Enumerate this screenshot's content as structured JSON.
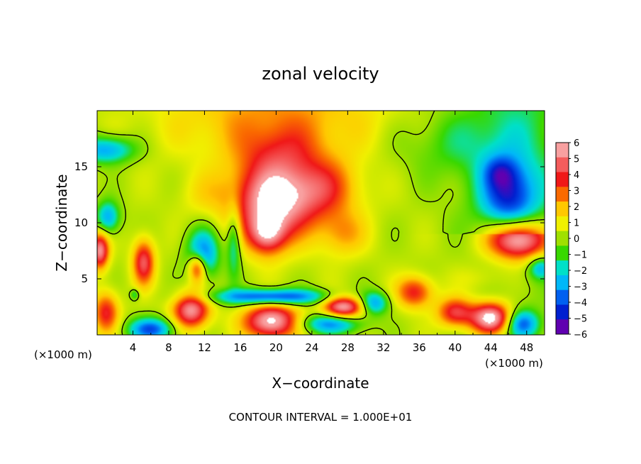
{
  "chart_data": {
    "type": "heatmap",
    "title": "zonal velocity",
    "xlabel": "X−coordinate",
    "ylabel": "Z−coordinate",
    "x_unit_left": "(×1000 m)",
    "x_unit_right": "(×1000 m)",
    "footer": "CONTOUR INTERVAL = 1.000E+01",
    "xlim": [
      0,
      50
    ],
    "ylim": [
      0,
      20
    ],
    "x_ticks": [
      4,
      8,
      12,
      16,
      20,
      24,
      28,
      32,
      36,
      40,
      44,
      48
    ],
    "y_ticks": [
      5,
      10,
      15
    ],
    "colorbar": {
      "min": -6,
      "max": 6,
      "ticks": [
        6,
        5,
        4,
        3,
        2,
        1,
        0,
        -1,
        -2,
        -3,
        -4,
        -5,
        -6
      ],
      "colors": [
        "#f8a0a0",
        "#f45c5c",
        "#f01818",
        "#fa6a00",
        "#ffc800",
        "#f0f000",
        "#a0e000",
        "#38d800",
        "#00e0c8",
        "#00b8f8",
        "#0060f0",
        "#0020d0",
        "#6000b0"
      ],
      "saturate_high": "#ffffff"
    },
    "features": [
      {
        "x": 19.5,
        "z": 12.0,
        "sx": 4.5,
        "sz": 3.6,
        "amp": 6.2
      },
      {
        "x": 25.0,
        "z": 13.0,
        "sx": 4.2,
        "sz": 2.8,
        "amp": 3.2
      },
      {
        "x": 19.0,
        "z": 9.0,
        "sx": 2.0,
        "sz": 1.8,
        "amp": 4.0
      },
      {
        "x": 20.5,
        "z": 16.5,
        "sx": 4.5,
        "sz": 2.2,
        "amp": 1.5
      },
      {
        "x": 27.5,
        "z": 9.0,
        "sx": 2.6,
        "sz": 2.0,
        "amp": 2.0
      },
      {
        "x": 5.2,
        "z": 6.5,
        "sx": 1.2,
        "sz": 2.0,
        "amp": 4.6
      },
      {
        "x": 0.3,
        "z": 7.5,
        "sx": 1.0,
        "sz": 1.6,
        "amp": 5.5
      },
      {
        "x": 1.2,
        "z": 10.5,
        "sx": 1.3,
        "sz": 1.4,
        "amp": -3.5
      },
      {
        "x": 11.8,
        "z": 7.2,
        "sx": 1.8,
        "sz": 2.2,
        "amp": -4.2
      },
      {
        "x": 11.2,
        "z": 6.0,
        "sx": 1.0,
        "sz": 1.3,
        "amp": 5.0
      },
      {
        "x": 15.3,
        "z": 8.5,
        "sx": 0.8,
        "sz": 3.2,
        "amp": -2.8
      },
      {
        "x": 12.0,
        "z": 12.5,
        "sx": 3.0,
        "sz": 2.0,
        "amp": 0.9
      },
      {
        "x": 10.5,
        "z": 2.2,
        "sx": 2.0,
        "sz": 1.6,
        "amp": 5.6
      },
      {
        "x": 1.0,
        "z": 2.0,
        "sx": 1.4,
        "sz": 1.8,
        "amp": 3.8
      },
      {
        "x": 6.0,
        "z": 0.5,
        "sx": 2.5,
        "sz": 1.0,
        "amp": -4.5
      },
      {
        "x": 19.5,
        "z": 1.2,
        "sx": 3.0,
        "sz": 1.5,
        "amp": 6.5
      },
      {
        "x": 19.5,
        "z": 3.4,
        "sx": 6.5,
        "sz": 0.7,
        "amp": -5.0
      },
      {
        "x": 27.5,
        "z": 2.5,
        "sx": 2.2,
        "sz": 1.0,
        "amp": 6.0
      },
      {
        "x": 26.0,
        "z": 1.0,
        "sx": 3.5,
        "sz": 0.9,
        "amp": -3.8
      },
      {
        "x": 31.0,
        "z": 2.8,
        "sx": 1.5,
        "sz": 1.0,
        "amp": -3.5
      },
      {
        "x": 35.5,
        "z": 3.8,
        "sx": 2.0,
        "sz": 1.4,
        "amp": 3.8
      },
      {
        "x": 40.0,
        "z": 2.0,
        "sx": 2.0,
        "sz": 1.3,
        "amp": 4.2
      },
      {
        "x": 44.0,
        "z": 1.5,
        "sx": 2.3,
        "sz": 1.4,
        "amp": 6.8
      },
      {
        "x": 47.5,
        "z": 1.0,
        "sx": 1.8,
        "sz": 1.2,
        "amp": -4.0
      },
      {
        "x": 47.0,
        "z": 8.5,
        "sx": 3.3,
        "sz": 1.8,
        "amp": 7.0
      },
      {
        "x": 46.0,
        "z": 12.5,
        "sx": 3.0,
        "sz": 3.0,
        "amp": -4.0
      },
      {
        "x": 45.0,
        "z": 14.5,
        "sx": 1.8,
        "sz": 1.4,
        "amp": -2.0
      },
      {
        "x": 49.5,
        "z": 6.0,
        "sx": 1.3,
        "sz": 1.0,
        "amp": -3.0
      },
      {
        "x": 1.0,
        "z": 16.5,
        "sx": 3.2,
        "sz": 1.2,
        "amp": -3.6
      },
      {
        "x": 40.0,
        "z": 17.0,
        "sx": 7.0,
        "sz": 3.0,
        "amp": -1.3
      },
      {
        "x": 43.0,
        "z": 5.0,
        "sx": 3.0,
        "sz": 1.2,
        "amp": 0.8
      },
      {
        "x": 4.2,
        "z": 3.6,
        "sx": 0.5,
        "sz": 0.5,
        "amp": -2.0
      }
    ]
  }
}
